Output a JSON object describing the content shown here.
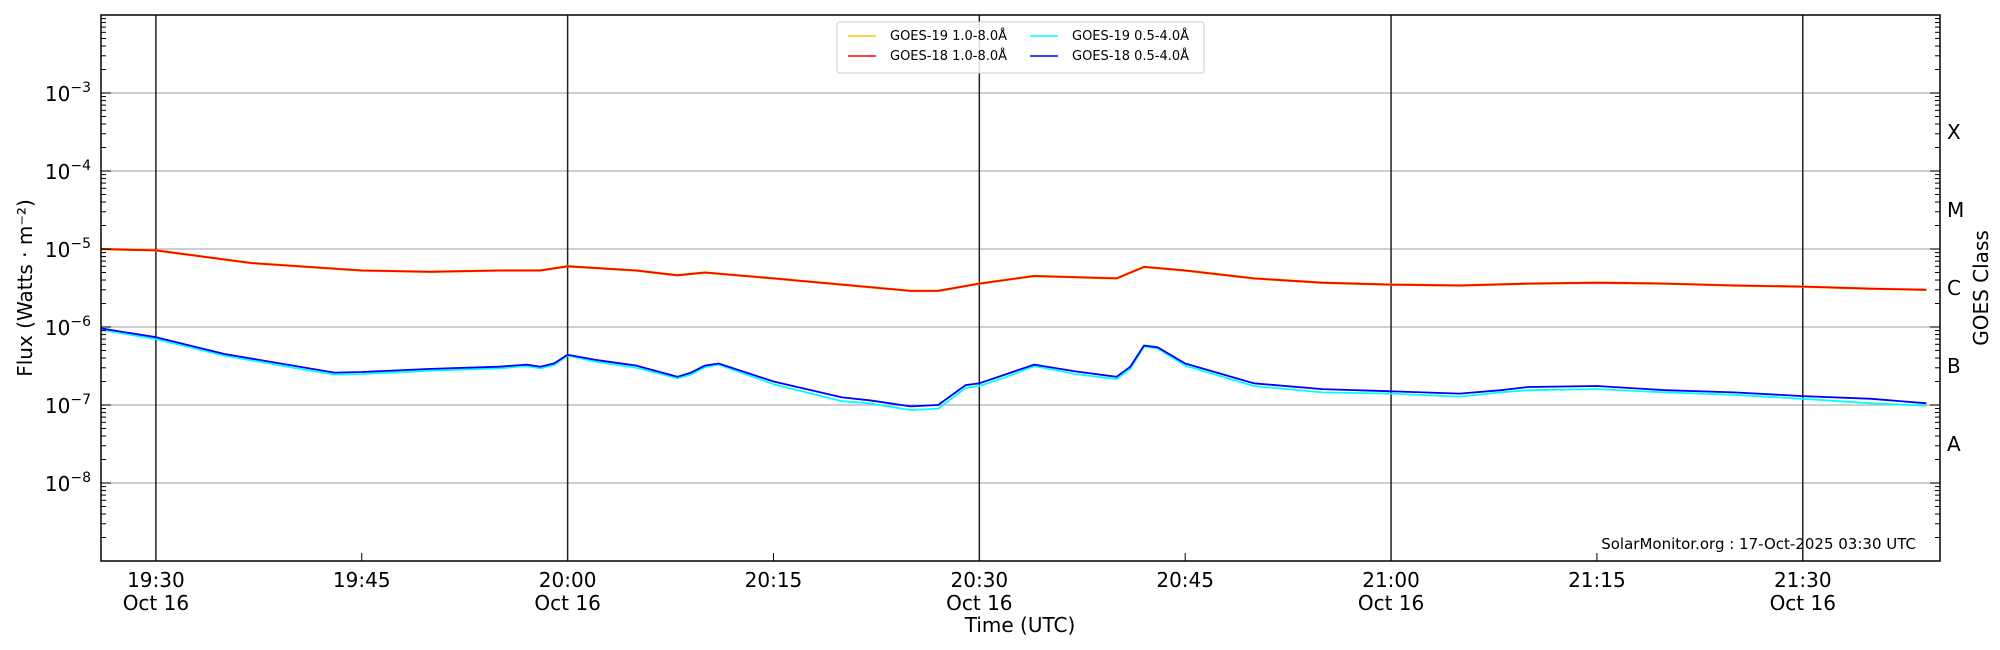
{
  "chart_data": {
    "type": "line",
    "xlabel": "Time (UTC)",
    "ylabel": "Flux (Watts · m⁻²)",
    "ylabel_right": "GOES Class",
    "yscale": "log",
    "ylim": [
      1e-09,
      0.01
    ],
    "xlim": [
      "19:26",
      "21:40"
    ],
    "grid": "horizontal at decades",
    "legend_placement": "top-center",
    "x_ticks_major": [
      {
        "t": "19:30",
        "label": "19:30",
        "date": "Oct 16"
      },
      {
        "t": "19:45",
        "label": "19:45",
        "date": ""
      },
      {
        "t": "20:00",
        "label": "20:00",
        "date": "Oct 16"
      },
      {
        "t": "20:15",
        "label": "20:15",
        "date": ""
      },
      {
        "t": "20:30",
        "label": "20:30",
        "date": "Oct 16"
      },
      {
        "t": "20:45",
        "label": "20:45",
        "date": ""
      },
      {
        "t": "21:00",
        "label": "21:00",
        "date": "Oct 16"
      },
      {
        "t": "21:15",
        "label": "21:15",
        "date": ""
      },
      {
        "t": "21:30",
        "label": "21:30",
        "date": "Oct 16"
      }
    ],
    "y_ticks": [
      {
        "exp": -8,
        "base": "10",
        "sup": "−8"
      },
      {
        "exp": -7,
        "base": "10",
        "sup": "−7"
      },
      {
        "exp": -6,
        "base": "10",
        "sup": "−6"
      },
      {
        "exp": -5,
        "base": "10",
        "sup": "−5"
      },
      {
        "exp": -4,
        "base": "10",
        "sup": "−4"
      },
      {
        "exp": -3,
        "base": "10",
        "sup": "−3"
      }
    ],
    "goes_classes": [
      {
        "label": "A",
        "exp": -7.5
      },
      {
        "label": "B",
        "exp": -6.5
      },
      {
        "label": "C",
        "exp": -5.5
      },
      {
        "label": "M",
        "exp": -4.5
      },
      {
        "label": "X",
        "exp": -3.5
      }
    ],
    "annotation": "SolarMonitor.org : 17-Oct-2025 03:30 UTC",
    "series": [
      {
        "name": "GOES-19 1.0-8.0Å",
        "color": "#FFC800",
        "x": [
          "19:26",
          "19:30",
          "19:37",
          "19:45",
          "19:50",
          "19:55",
          "19:58",
          "20:00",
          "20:05",
          "20:08",
          "20:10",
          "20:15",
          "20:20",
          "20:25",
          "20:27",
          "20:30",
          "20:34",
          "20:40",
          "20:42",
          "20:45",
          "20:50",
          "20:55",
          "21:00",
          "21:05",
          "21:10",
          "21:15",
          "21:20",
          "21:25",
          "21:30",
          "21:35",
          "21:39"
        ],
        "y": [
          1e-05,
          9.6e-06,
          6.6e-06,
          5.3e-06,
          5.1e-06,
          5.3e-06,
          5.3e-06,
          6e-06,
          5.3e-06,
          4.6e-06,
          5e-06,
          4.2e-06,
          3.5e-06,
          2.9e-06,
          2.9e-06,
          3.6e-06,
          4.5e-06,
          4.2e-06,
          5.9e-06,
          5.3e-06,
          4.2e-06,
          3.7e-06,
          3.5e-06,
          3.4e-06,
          3.6e-06,
          3.7e-06,
          3.6e-06,
          3.4e-06,
          3.3e-06,
          3.1e-06,
          3e-06
        ]
      },
      {
        "name": "GOES-18 1.0-8.0Å",
        "color": "#FF0000",
        "x": [
          "19:26",
          "19:30",
          "19:37",
          "19:45",
          "19:50",
          "19:55",
          "19:58",
          "20:00",
          "20:05",
          "20:08",
          "20:10",
          "20:15",
          "20:20",
          "20:25",
          "20:27",
          "20:30",
          "20:34",
          "20:40",
          "20:42",
          "20:45",
          "20:50",
          "20:55",
          "21:00",
          "21:05",
          "21:10",
          "21:15",
          "21:20",
          "21:25",
          "21:30",
          "21:35",
          "21:39"
        ],
        "y": [
          1e-05,
          9.6e-06,
          6.6e-06,
          5.3e-06,
          5.1e-06,
          5.3e-06,
          5.3e-06,
          6e-06,
          5.3e-06,
          4.6e-06,
          5e-06,
          4.2e-06,
          3.5e-06,
          2.9e-06,
          2.9e-06,
          3.6e-06,
          4.5e-06,
          4.2e-06,
          5.9e-06,
          5.3e-06,
          4.2e-06,
          3.7e-06,
          3.5e-06,
          3.4e-06,
          3.6e-06,
          3.7e-06,
          3.6e-06,
          3.4e-06,
          3.3e-06,
          3.1e-06,
          3e-06
        ]
      },
      {
        "name": "GOES-19 0.5-4.0Å",
        "color": "#00FFFF",
        "x": [
          "19:26",
          "19:30",
          "19:35",
          "19:40",
          "19:43",
          "19:45",
          "19:50",
          "19:55",
          "19:57",
          "19:58",
          "19:59",
          "20:00",
          "20:02",
          "20:05",
          "20:08",
          "20:09",
          "20:10",
          "20:11",
          "20:15",
          "20:20",
          "20:22",
          "20:25",
          "20:27",
          "20:29",
          "20:30",
          "20:32",
          "20:34",
          "20:37",
          "20:40",
          "20:41",
          "20:42",
          "20:43",
          "20:45",
          "20:50",
          "20:55",
          "21:00",
          "21:05",
          "21:08",
          "21:10",
          "21:15",
          "21:20",
          "21:25",
          "21:30",
          "21:35",
          "21:39"
        ],
        "y": [
          9.2e-07,
          7e-07,
          4.3e-07,
          3e-07,
          2.45e-07,
          2.5e-07,
          2.75e-07,
          2.95e-07,
          3.15e-07,
          2.95e-07,
          3.25e-07,
          4.3e-07,
          3.6e-07,
          3e-07,
          2.2e-07,
          2.45e-07,
          3.05e-07,
          3.3e-07,
          1.85e-07,
          1.12e-07,
          1.05e-07,
          8.6e-08,
          9e-08,
          1.65e-07,
          1.75e-07,
          2.3e-07,
          3.15e-07,
          2.5e-07,
          2.15e-07,
          2.9e-07,
          5.6e-07,
          5.3e-07,
          3.2e-07,
          1.75e-07,
          1.45e-07,
          1.4e-07,
          1.28e-07,
          1.45e-07,
          1.55e-07,
          1.6e-07,
          1.45e-07,
          1.35e-07,
          1.2e-07,
          1.05e-07,
          9.8e-08
        ]
      },
      {
        "name": "GOES-18 0.5-4.0Å",
        "color": "#0000FF",
        "x": [
          "19:26",
          "19:30",
          "19:35",
          "19:40",
          "19:43",
          "19:45",
          "19:50",
          "19:55",
          "19:57",
          "19:58",
          "19:59",
          "20:00",
          "20:02",
          "20:05",
          "20:08",
          "20:09",
          "20:10",
          "20:11",
          "20:15",
          "20:20",
          "20:22",
          "20:25",
          "20:27",
          "20:29",
          "20:30",
          "20:32",
          "20:34",
          "20:37",
          "20:40",
          "20:41",
          "20:42",
          "20:43",
          "20:45",
          "20:50",
          "20:55",
          "21:00",
          "21:05",
          "21:08",
          "21:10",
          "21:15",
          "21:20",
          "21:25",
          "21:30",
          "21:35",
          "21:39"
        ],
        "y": [
          9.6e-07,
          7.4e-07,
          4.5e-07,
          3.2e-07,
          2.6e-07,
          2.65e-07,
          2.9e-07,
          3.1e-07,
          3.3e-07,
          3.1e-07,
          3.4e-07,
          4.4e-07,
          3.8e-07,
          3.2e-07,
          2.3e-07,
          2.6e-07,
          3.2e-07,
          3.4e-07,
          2e-07,
          1.25e-07,
          1.15e-07,
          9.6e-08,
          1e-07,
          1.8e-07,
          1.9e-07,
          2.5e-07,
          3.3e-07,
          2.7e-07,
          2.3e-07,
          3.1e-07,
          5.8e-07,
          5.5e-07,
          3.4e-07,
          1.9e-07,
          1.6e-07,
          1.5e-07,
          1.4e-07,
          1.55e-07,
          1.7e-07,
          1.75e-07,
          1.55e-07,
          1.45e-07,
          1.3e-07,
          1.2e-07,
          1.05e-07
        ]
      }
    ]
  }
}
